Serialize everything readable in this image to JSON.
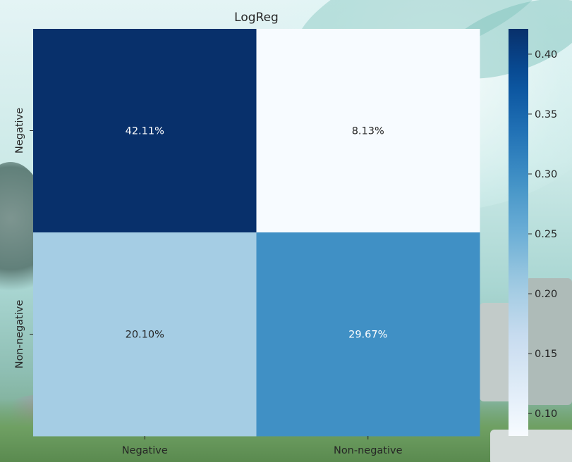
{
  "chart_data": {
    "type": "heatmap",
    "title": "LogReg",
    "rows": [
      "Negative",
      "Non-negative"
    ],
    "columns": [
      "Negative",
      "Non-negative"
    ],
    "values": [
      [
        0.4211,
        0.0813
      ],
      [
        0.201,
        0.2967
      ]
    ],
    "annotations": [
      [
        "42.11%",
        "8.13%"
      ],
      [
        "20.10%",
        "29.67%"
      ]
    ],
    "colormap": "Blues",
    "colorbar": {
      "vmin": 0.0813,
      "vmax": 0.4211,
      "ticks": [
        0.1,
        0.15,
        0.2,
        0.25,
        0.3,
        0.35,
        0.4
      ],
      "tick_labels": [
        "0.10",
        "0.15",
        "0.20",
        "0.25",
        "0.30",
        "0.35",
        "0.40"
      ]
    },
    "xlabel": "",
    "ylabel": "",
    "legend": "right"
  }
}
